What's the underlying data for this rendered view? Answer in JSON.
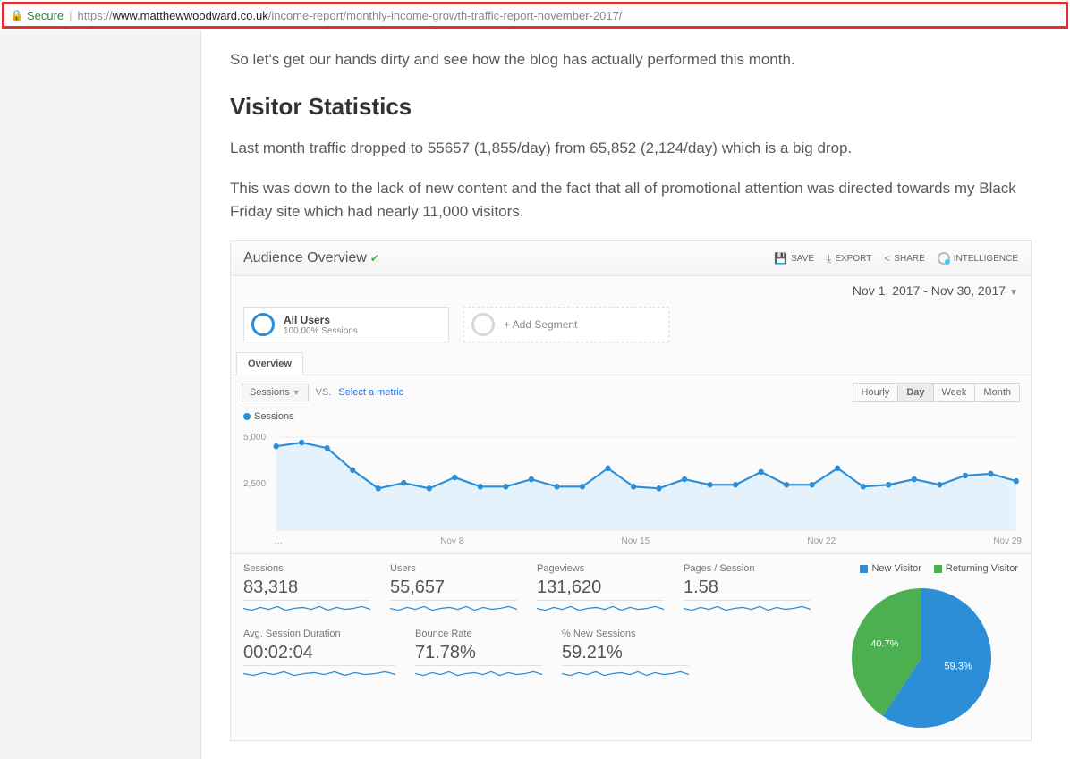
{
  "url_bar": {
    "secure": "Secure",
    "prefix": "https://",
    "domain": "www.matthewwoodward.co.uk",
    "path": "/income-report/monthly-income-growth-traffic-report-november-2017/"
  },
  "article": {
    "intro": "So let's get our hands dirty and see how the blog has actually performed this month.",
    "heading": "Visitor Statistics",
    "para1": "Last month traffic dropped to 55657 (1,855/day) from 65,852 (2,124/day) which is a big drop.",
    "para2": "This was down to the lack of new content and the fact that all of promotional attention was directed towards my Black Friday site which had nearly 11,000 visitors."
  },
  "ga": {
    "title": "Audience Overview",
    "top_buttons": {
      "save": "SAVE",
      "export": "EXPORT",
      "share": "SHARE",
      "intelligence": "INTELLIGENCE"
    },
    "date_range": "Nov 1, 2017 - Nov 30, 2017",
    "segments": {
      "all_users_title": "All Users",
      "all_users_sub": "100.00% Sessions",
      "add_segment": "+ Add Segment"
    },
    "tab": "Overview",
    "controls": {
      "metric": "Sessions",
      "vs": "VS.",
      "select_metric": "Select a metric",
      "granularity": {
        "hourly": "Hourly",
        "day": "Day",
        "week": "Week",
        "month": "Month",
        "active": "Day"
      }
    },
    "legend_label": "Sessions",
    "chart": {
      "type": "line",
      "y_ticks": [
        5000,
        2500
      ],
      "y_tick_labels": [
        "5,000",
        "2,500"
      ],
      "ylim": [
        0,
        5000
      ],
      "x_labels": [
        "…",
        "Nov 8",
        "Nov 15",
        "Nov 22",
        "Nov 29"
      ],
      "line_color": "#2c8ed6",
      "fill_color": "#e6f2fb",
      "marker_radius": 3,
      "grid_color": "#f0f0f0",
      "values": [
        4500,
        4700,
        4400,
        3200,
        2200,
        2500,
        2200,
        2800,
        2300,
        2300,
        2700,
        2300,
        2300,
        3300,
        2300,
        2200,
        2700,
        2400,
        2400,
        3100,
        2400,
        2400,
        3300,
        2300,
        2400,
        2700,
        2400,
        2900,
        3000,
        2600
      ]
    },
    "metrics": [
      {
        "label": "Sessions",
        "value": "83,318"
      },
      {
        "label": "Users",
        "value": "55,657"
      },
      {
        "label": "Pageviews",
        "value": "131,620"
      },
      {
        "label": "Pages / Session",
        "value": "1.58"
      },
      {
        "label": "Avg. Session Duration",
        "value": "00:02:04"
      },
      {
        "label": "Bounce Rate",
        "value": "71.78%"
      },
      {
        "label": "% New Sessions",
        "value": "59.21%"
      }
    ],
    "spark_color": "#2c8ed6",
    "pie": {
      "legend": {
        "new": "New Visitor",
        "returning": "Returning Visitor"
      },
      "new_color": "#2c8ed6",
      "returning_color": "#4caf50",
      "new_pct": 59.3,
      "returning_pct": 40.7,
      "new_label": "59.3%",
      "returning_label": "40.7%"
    }
  }
}
